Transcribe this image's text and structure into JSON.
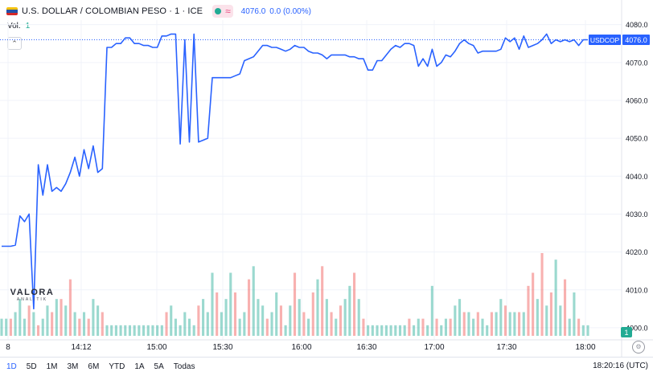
{
  "header": {
    "title": "U.S. DOLLAR / COLOMBIAN PESO · 1 · ICE",
    "price": "4076.0",
    "change": "0.0 (0.00%)"
  },
  "volume": {
    "label": "Vol.",
    "value": "1"
  },
  "price_tag": {
    "symbol": "USDCOP",
    "value": "4076.0"
  },
  "volume_tag": "1",
  "footer": {
    "ranges": [
      "1D",
      "5D",
      "1M",
      "3M",
      "6M",
      "YTD",
      "1A",
      "5A",
      "Todas"
    ],
    "active": "1D",
    "clock": "18:20:16 (UTC)"
  },
  "watermark": {
    "brand": "VALORA",
    "sub": "ANALITIK"
  },
  "colors": {
    "line": "#2962ff",
    "vol_up": "#22ab94",
    "vol_down": "#ef5350",
    "grid": "#f0f3fa"
  },
  "chart_data": {
    "type": "line",
    "y_ticks": [
      4000,
      4010,
      4020,
      4030,
      4040,
      4050,
      4060,
      4070,
      4080
    ],
    "ylim": [
      3996.8,
      4081.2
    ],
    "x_ticks": [
      "8",
      "14:12",
      "15:00",
      "15:30",
      "16:00",
      "16:30",
      "17:00",
      "17:30",
      "18:00"
    ],
    "last_value": 4076.0,
    "price_series": [
      4021.5,
      4021.5,
      4021.5,
      4021.8,
      4029.5,
      4028,
      4030,
      4005,
      4043,
      4035,
      4043,
      4036,
      4037,
      4036,
      4038,
      4041,
      4045,
      4040,
      4047,
      4042,
      4048,
      4041,
      4042,
      4074,
      4074,
      4075,
      4075,
      4076.5,
      4076.5,
      4075,
      4075,
      4074.5,
      4074.5,
      4074,
      4074,
      4077,
      4077,
      4077.5,
      4077.5,
      4048.5,
      4076,
      4049,
      4077.5,
      4049,
      4049.5,
      4050,
      4066,
      4066,
      4066,
      4066,
      4066,
      4066.5,
      4067,
      4070.5,
      4071,
      4071.5,
      4073,
      4074.5,
      4074.5,
      4074,
      4074,
      4073.5,
      4073,
      4073.5,
      4074.5,
      4074,
      4074,
      4073,
      4072.5,
      4072.5,
      4072,
      4071,
      4072,
      4072,
      4072,
      4072,
      4071.5,
      4071.5,
      4071,
      4071,
      4068,
      4068,
      4070.5,
      4070.5,
      4072,
      4073.5,
      4074.5,
      4074,
      4075,
      4075,
      4074.5,
      4069,
      4071,
      4069,
      4073.5,
      4069,
      4070,
      4072,
      4071.5,
      4073,
      4075,
      4076,
      4075,
      4074.5,
      4072.5,
      4073,
      4073,
      4073,
      4073,
      4073.5,
      4076.5,
      4075.5,
      4076.5,
      4073.5,
      4077,
      4074,
      4074.5,
      4075,
      4076,
      4077.5,
      4075,
      4076,
      4075.5,
      4076,
      4075.5,
      4076,
      4074.5,
      4076,
      4076
    ],
    "volume_series": [
      2,
      2,
      2,
      3,
      5,
      2,
      4,
      3,
      1,
      2,
      4,
      3,
      5,
      5,
      4,
      8,
      3,
      2,
      3,
      2,
      5,
      4,
      3,
      1,
      1,
      1,
      1,
      1,
      1,
      1,
      1,
      1,
      1,
      1,
      1,
      1,
      3,
      4,
      2,
      1,
      3,
      2,
      1,
      4,
      5,
      3,
      9,
      6,
      3,
      5,
      9,
      6,
      2,
      3,
      8,
      10,
      5,
      4,
      2,
      3,
      6,
      4,
      1,
      4,
      9,
      5,
      3,
      2,
      6,
      8,
      10,
      5,
      3,
      2,
      4,
      5,
      7,
      9,
      5,
      2,
      1,
      1,
      1,
      1,
      1,
      1,
      1,
      1,
      1,
      2,
      1,
      2,
      2,
      1,
      7,
      2,
      1,
      2,
      2,
      4,
      5,
      3,
      3,
      2,
      3,
      2,
      1,
      3,
      3,
      5,
      4,
      3,
      3,
      3,
      3,
      7,
      9,
      5,
      12,
      4,
      6,
      11,
      4,
      8,
      2,
      6,
      2,
      1,
      1
    ],
    "volume_up": [
      1,
      1,
      0,
      1,
      1,
      1,
      0,
      1,
      0,
      1,
      1,
      0,
      1,
      0,
      1,
      0,
      1,
      0,
      1,
      0,
      1,
      1,
      0,
      1,
      1,
      1,
      1,
      1,
      1,
      1,
      1,
      1,
      1,
      1,
      1,
      1,
      0,
      1,
      1,
      1,
      1,
      1,
      1,
      0,
      1,
      1,
      1,
      0,
      1,
      1,
      1,
      0,
      1,
      1,
      0,
      1,
      1,
      1,
      0,
      1,
      1,
      0,
      1,
      1,
      0,
      1,
      0,
      1,
      0,
      1,
      0,
      1,
      0,
      1,
      0,
      1,
      1,
      0,
      1,
      0,
      1,
      1,
      1,
      1,
      1,
      1,
      1,
      1,
      1,
      0,
      1,
      1,
      0,
      1,
      1,
      0,
      1,
      1,
      0,
      1,
      1,
      0,
      1,
      1,
      0,
      1,
      1,
      0,
      1,
      1,
      0,
      1,
      1,
      0,
      1,
      0,
      0,
      1,
      0,
      1,
      0,
      1,
      1,
      0,
      1,
      1,
      0,
      1,
      1
    ],
    "series": [
      {
        "name": "USDCOP",
        "role": "price"
      },
      {
        "name": "Vol.",
        "role": "volume"
      }
    ]
  }
}
